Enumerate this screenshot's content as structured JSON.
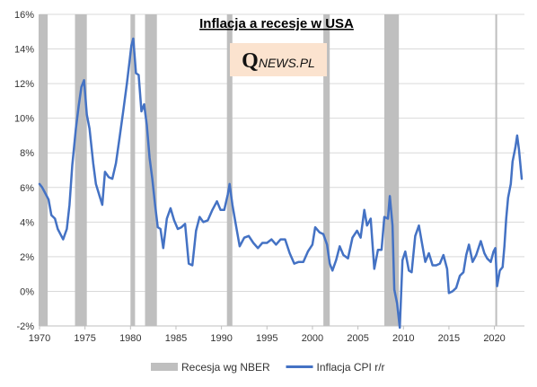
{
  "colors": {
    "line": "#4472C4",
    "recession": "#BFBFBF",
    "grid": "#D9D9D9",
    "axis": "#BFBFBF",
    "logo_bg": "#FBE3CF"
  },
  "logo": {
    "q": "Q",
    "rest": "NEWS.PL"
  },
  "chart_data": {
    "type": "line",
    "title": "Inflacja a recesje w USA",
    "xlim": [
      1970,
      2023.3
    ],
    "ylim": [
      -2,
      16
    ],
    "x_ticks": [
      1970,
      1975,
      1980,
      1985,
      1990,
      1995,
      2000,
      2005,
      2010,
      2015,
      2020
    ],
    "y_ticks": [
      {
        "value": -2,
        "label": "-2%"
      },
      {
        "value": 0,
        "label": "0%"
      },
      {
        "value": 2,
        "label": "2%"
      },
      {
        "value": 4,
        "label": "4%"
      },
      {
        "value": 6,
        "label": "6%"
      },
      {
        "value": 8,
        "label": "8%"
      },
      {
        "value": 10,
        "label": "10%"
      },
      {
        "value": 12,
        "label": "12%"
      },
      {
        "value": 14,
        "label": "14%"
      },
      {
        "value": 16,
        "label": "16%"
      }
    ],
    "grid": "horizontal",
    "legend_position": "bottom",
    "legend": [
      {
        "name": "Recesja wg NBER",
        "kind": "box"
      },
      {
        "name": "Inflacja CPI r/r",
        "kind": "line"
      }
    ],
    "recessions": [
      {
        "start": 1969.9,
        "end": 1970.9
      },
      {
        "start": 1973.9,
        "end": 1975.2
      },
      {
        "start": 1980.0,
        "end": 1980.5
      },
      {
        "start": 1981.6,
        "end": 1982.9
      },
      {
        "start": 1990.6,
        "end": 1991.2
      },
      {
        "start": 2001.2,
        "end": 2001.9
      },
      {
        "start": 2007.9,
        "end": 2009.5
      },
      {
        "start": 2020.1,
        "end": 2020.3
      }
    ],
    "series": [
      {
        "name": "Inflacja CPI r/r",
        "points": [
          [
            1970.0,
            6.2
          ],
          [
            1970.3,
            6.0
          ],
          [
            1970.6,
            5.7
          ],
          [
            1971.0,
            5.3
          ],
          [
            1971.3,
            4.4
          ],
          [
            1971.7,
            4.2
          ],
          [
            1972.0,
            3.6
          ],
          [
            1972.3,
            3.3
          ],
          [
            1972.6,
            3.0
          ],
          [
            1973.0,
            3.6
          ],
          [
            1973.3,
            5.0
          ],
          [
            1973.6,
            7.3
          ],
          [
            1974.0,
            9.4
          ],
          [
            1974.3,
            10.7
          ],
          [
            1974.6,
            11.8
          ],
          [
            1974.9,
            12.2
          ],
          [
            1975.2,
            10.2
          ],
          [
            1975.5,
            9.4
          ],
          [
            1975.9,
            7.4
          ],
          [
            1976.2,
            6.2
          ],
          [
            1976.6,
            5.5
          ],
          [
            1976.9,
            5.0
          ],
          [
            1977.2,
            6.9
          ],
          [
            1977.6,
            6.6
          ],
          [
            1978.0,
            6.5
          ],
          [
            1978.4,
            7.4
          ],
          [
            1978.8,
            8.9
          ],
          [
            1979.2,
            10.4
          ],
          [
            1979.6,
            12.0
          ],
          [
            1979.9,
            13.3
          ],
          [
            1980.1,
            14.2
          ],
          [
            1980.3,
            14.6
          ],
          [
            1980.6,
            12.6
          ],
          [
            1980.9,
            12.5
          ],
          [
            1981.2,
            10.4
          ],
          [
            1981.5,
            10.8
          ],
          [
            1981.8,
            9.6
          ],
          [
            1982.1,
            7.7
          ],
          [
            1982.4,
            6.5
          ],
          [
            1982.7,
            5.0
          ],
          [
            1983.0,
            3.7
          ],
          [
            1983.3,
            3.6
          ],
          [
            1983.6,
            2.5
          ],
          [
            1984.0,
            4.2
          ],
          [
            1984.4,
            4.8
          ],
          [
            1984.8,
            4.1
          ],
          [
            1985.2,
            3.6
          ],
          [
            1985.6,
            3.7
          ],
          [
            1986.0,
            3.9
          ],
          [
            1986.4,
            1.6
          ],
          [
            1986.8,
            1.5
          ],
          [
            1987.2,
            3.5
          ],
          [
            1987.6,
            4.3
          ],
          [
            1988.0,
            4.0
          ],
          [
            1988.5,
            4.1
          ],
          [
            1989.0,
            4.7
          ],
          [
            1989.5,
            5.2
          ],
          [
            1989.9,
            4.7
          ],
          [
            1990.3,
            4.7
          ],
          [
            1990.7,
            5.6
          ],
          [
            1990.9,
            6.2
          ],
          [
            1991.2,
            5.0
          ],
          [
            1991.6,
            3.8
          ],
          [
            1992.0,
            2.6
          ],
          [
            1992.5,
            3.1
          ],
          [
            1993.0,
            3.2
          ],
          [
            1993.5,
            2.8
          ],
          [
            1994.0,
            2.5
          ],
          [
            1994.5,
            2.8
          ],
          [
            1995.0,
            2.8
          ],
          [
            1995.5,
            3.0
          ],
          [
            1996.0,
            2.7
          ],
          [
            1996.5,
            3.0
          ],
          [
            1997.0,
            3.0
          ],
          [
            1997.5,
            2.2
          ],
          [
            1998.0,
            1.6
          ],
          [
            1998.5,
            1.7
          ],
          [
            1999.0,
            1.7
          ],
          [
            1999.5,
            2.3
          ],
          [
            2000.0,
            2.7
          ],
          [
            2000.3,
            3.7
          ],
          [
            2000.8,
            3.4
          ],
          [
            2001.2,
            3.3
          ],
          [
            2001.6,
            2.7
          ],
          [
            2001.9,
            1.6
          ],
          [
            2002.2,
            1.2
          ],
          [
            2002.6,
            1.8
          ],
          [
            2003.0,
            2.6
          ],
          [
            2003.4,
            2.1
          ],
          [
            2003.9,
            1.9
          ],
          [
            2004.4,
            3.1
          ],
          [
            2004.9,
            3.5
          ],
          [
            2005.3,
            3.1
          ],
          [
            2005.7,
            4.7
          ],
          [
            2006.0,
            3.8
          ],
          [
            2006.4,
            4.2
          ],
          [
            2006.8,
            1.3
          ],
          [
            2007.2,
            2.4
          ],
          [
            2007.6,
            2.4
          ],
          [
            2007.9,
            4.3
          ],
          [
            2008.3,
            4.2
          ],
          [
            2008.5,
            5.5
          ],
          [
            2008.8,
            3.8
          ],
          [
            2009.0,
            0.1
          ],
          [
            2009.3,
            -0.7
          ],
          [
            2009.6,
            -2.1
          ],
          [
            2009.9,
            1.8
          ],
          [
            2010.2,
            2.3
          ],
          [
            2010.6,
            1.2
          ],
          [
            2010.9,
            1.1
          ],
          [
            2011.3,
            3.2
          ],
          [
            2011.7,
            3.8
          ],
          [
            2012.0,
            2.9
          ],
          [
            2012.4,
            1.7
          ],
          [
            2012.8,
            2.2
          ],
          [
            2013.2,
            1.5
          ],
          [
            2013.6,
            1.5
          ],
          [
            2014.0,
            1.6
          ],
          [
            2014.4,
            2.1
          ],
          [
            2014.8,
            1.3
          ],
          [
            2015.0,
            -0.1
          ],
          [
            2015.4,
            0.0
          ],
          [
            2015.8,
            0.2
          ],
          [
            2016.2,
            0.9
          ],
          [
            2016.6,
            1.1
          ],
          [
            2016.9,
            2.1
          ],
          [
            2017.2,
            2.7
          ],
          [
            2017.6,
            1.7
          ],
          [
            2018.0,
            2.1
          ],
          [
            2018.5,
            2.9
          ],
          [
            2018.9,
            2.2
          ],
          [
            2019.2,
            1.9
          ],
          [
            2019.6,
            1.7
          ],
          [
            2019.9,
            2.3
          ],
          [
            2020.1,
            2.5
          ],
          [
            2020.3,
            0.3
          ],
          [
            2020.6,
            1.2
          ],
          [
            2020.9,
            1.4
          ],
          [
            2021.1,
            2.6
          ],
          [
            2021.3,
            4.2
          ],
          [
            2021.5,
            5.4
          ],
          [
            2021.8,
            6.2
          ],
          [
            2022.0,
            7.5
          ],
          [
            2022.3,
            8.3
          ],
          [
            2022.5,
            9.0
          ],
          [
            2022.7,
            8.2
          ],
          [
            2022.9,
            7.1
          ],
          [
            2023.0,
            6.5
          ]
        ]
      }
    ]
  }
}
